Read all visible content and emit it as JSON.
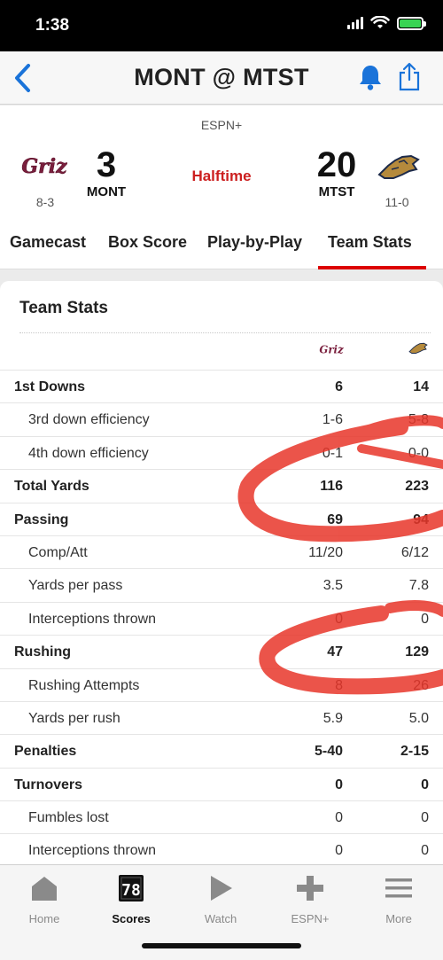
{
  "status_bar": {
    "time": "1:38"
  },
  "nav": {
    "title": "MONT @ MTST"
  },
  "game": {
    "network": "ESPN+",
    "status": "Halftime",
    "away": {
      "abbr": "MONT",
      "score": "3",
      "record": "8-3",
      "logo_text": "Griz"
    },
    "home": {
      "abbr": "MTST",
      "score": "20",
      "record": "11-0"
    }
  },
  "tabs": [
    {
      "label": "Gamecast"
    },
    {
      "label": "Box Score"
    },
    {
      "label": "Play-by-Play"
    },
    {
      "label": "Team Stats",
      "active": true
    }
  ],
  "team_stats": {
    "title": "Team Stats",
    "rows": [
      {
        "label": "1st Downs",
        "away": "6",
        "home": "14",
        "main": true
      },
      {
        "label": "3rd down efficiency",
        "away": "1-6",
        "home": "5-8",
        "main": false
      },
      {
        "label": "4th down efficiency",
        "away": "0-1",
        "home": "0-0",
        "main": false
      },
      {
        "label": "Total Yards",
        "away": "116",
        "home": "223",
        "main": true
      },
      {
        "label": "Passing",
        "away": "69",
        "home": "94",
        "main": true
      },
      {
        "label": "Comp/Att",
        "away": "11/20",
        "home": "6/12",
        "main": false
      },
      {
        "label": "Yards per pass",
        "away": "3.5",
        "home": "7.8",
        "main": false
      },
      {
        "label": "Interceptions thrown",
        "away": "0",
        "home": "0",
        "main": false
      },
      {
        "label": "Rushing",
        "away": "47",
        "home": "129",
        "main": true
      },
      {
        "label": "Rushing Attempts",
        "away": "8",
        "home": "26",
        "main": false
      },
      {
        "label": "Yards per rush",
        "away": "5.9",
        "home": "5.0",
        "main": false
      },
      {
        "label": "Penalties",
        "away": "5-40",
        "home": "2-15",
        "main": true
      },
      {
        "label": "Turnovers",
        "away": "0",
        "home": "0",
        "main": true
      },
      {
        "label": "Fumbles lost",
        "away": "0",
        "home": "0",
        "main": false
      },
      {
        "label": "Interceptions thrown",
        "away": "0",
        "home": "0",
        "main": false
      }
    ]
  },
  "bottom_nav": {
    "items": [
      {
        "label": "Home",
        "icon": "home-icon"
      },
      {
        "label": "Scores",
        "icon": "scoreboard-icon",
        "active": true,
        "icon_text": "78"
      },
      {
        "label": "Watch",
        "icon": "play-icon"
      },
      {
        "label": "ESPN+",
        "icon": "plus-icon"
      },
      {
        "label": "More",
        "icon": "menu-icon"
      }
    ]
  },
  "colors": {
    "accent_blue": "#1a73d9",
    "live_red": "#cc1f1f",
    "griz_maroon": "#7a1f3d",
    "bobcat_gold": "#b58a3c",
    "bobcat_navy": "#1c2a4a",
    "annotation_red": "#e8362a"
  }
}
